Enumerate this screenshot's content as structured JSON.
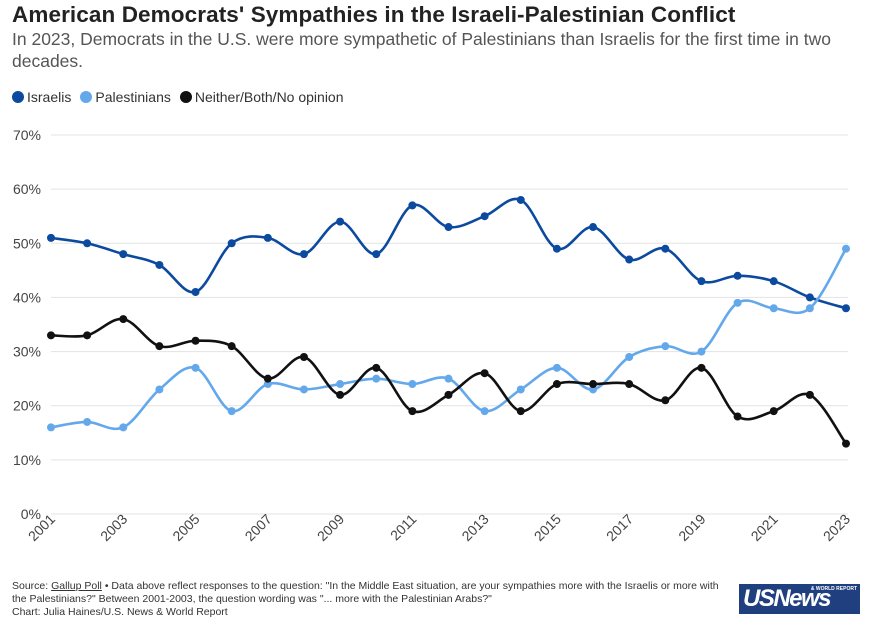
{
  "header": {
    "title": "American Democrats' Sympathies in the Israeli-Palestinian Conflict",
    "subtitle": "In 2023, Democrats in the U.S. were more sympathetic of Palestinians than Israelis for the first time in two decades."
  },
  "legend": [
    {
      "label": "Israelis",
      "color": "#0b4a9e"
    },
    {
      "label": "Palestinians",
      "color": "#64a8ec"
    },
    {
      "label": "Neither/Both/No opinion",
      "color": "#111111"
    }
  ],
  "chart_data": {
    "type": "line",
    "title": "American Democrats' Sympathies in the Israeli-Palestinian Conflict",
    "xlabel": "",
    "ylabel": "",
    "ylim": [
      0,
      70
    ],
    "yticks": [
      "0%",
      "10%",
      "20%",
      "30%",
      "40%",
      "50%",
      "60%",
      "70%"
    ],
    "x": [
      2001,
      2002,
      2003,
      2004,
      2005,
      2006,
      2007,
      2008,
      2009,
      2010,
      2011,
      2012,
      2013,
      2014,
      2015,
      2016,
      2017,
      2018,
      2019,
      2020,
      2021,
      2022,
      2023
    ],
    "xticks": [
      "2001",
      "2003",
      "2005",
      "2007",
      "2009",
      "2011",
      "2013",
      "2015",
      "2017",
      "2019",
      "2021",
      "2023"
    ],
    "grid": true,
    "legend_position": "top-left",
    "series": [
      {
        "name": "Israelis",
        "color": "#0b4a9e",
        "values": [
          51,
          50,
          48,
          46,
          41,
          50,
          51,
          48,
          54,
          48,
          57,
          53,
          55,
          58,
          49,
          53,
          47,
          49,
          43,
          44,
          43,
          40,
          38
        ]
      },
      {
        "name": "Palestinians",
        "color": "#64a8ec",
        "values": [
          16,
          17,
          16,
          23,
          27,
          19,
          24,
          23,
          24,
          25,
          24,
          25,
          19,
          23,
          27,
          23,
          29,
          31,
          30,
          39,
          38,
          38,
          49
        ]
      },
      {
        "name": "Neither/Both/No opinion",
        "color": "#111111",
        "values": [
          33,
          33,
          36,
          31,
          32,
          31,
          25,
          29,
          22,
          27,
          19,
          22,
          26,
          19,
          24,
          24,
          24,
          21,
          27,
          18,
          19,
          22,
          13
        ]
      }
    ]
  },
  "footer": {
    "source_label": "Source:",
    "source_link": "Gallup Poll",
    "note": "• Data above reflect responses to the question: \"In the Middle East situation, are your sympathies more with the Israelis or more with the Palestinians?\" Between 2001-2003, the question wording was \"... more with the Palestinian Arabs?\"",
    "credit": "Chart: Julia Haines/U.S. News & World Report"
  },
  "logo": {
    "main": "USNews",
    "tagline_1": "& WORLD REPORT"
  }
}
